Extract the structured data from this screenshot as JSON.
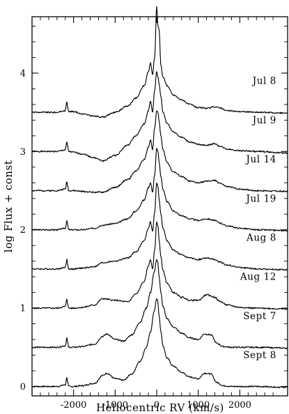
{
  "chart_data": {
    "type": "line",
    "xlabel": "Heliocentric RV  (km/s)",
    "ylabel": "log Flux + const",
    "xlim": [
      -3000,
      3150
    ],
    "ylim": [
      -0.12,
      4.72
    ],
    "xticks": [
      -2000,
      -1000,
      0,
      1000,
      2000
    ],
    "yticks": [
      0,
      1,
      2,
      3,
      4
    ],
    "x_tick_labels": [
      "-2000",
      "-1000",
      "0",
      "1000",
      "2000"
    ],
    "y_tick_labels": [
      "0",
      "1",
      "2",
      "3",
      "4"
    ],
    "grid": false,
    "legend": "none (series labelled at right of each trace)",
    "series": [
      {
        "name": "Jul 8",
        "offset": 3.5,
        "x": [
          -3000,
          -2400,
          -2200,
          -2160,
          -2140,
          -2120,
          -2000,
          -1800,
          -1500,
          -1300,
          -1000,
          -700,
          -500,
          -300,
          -200,
          -150,
          -100,
          -50,
          0,
          30,
          60,
          100,
          150,
          250,
          400,
          600,
          800,
          1000,
          1200,
          1400,
          1500,
          1700,
          2000,
          2400,
          3150
        ],
        "y": [
          3.5,
          3.5,
          3.52,
          3.64,
          3.56,
          3.51,
          3.51,
          3.48,
          3.45,
          3.44,
          3.5,
          3.58,
          3.68,
          3.84,
          4.02,
          4.13,
          3.98,
          4.2,
          4.85,
          4.6,
          4.55,
          4.1,
          3.95,
          3.84,
          3.72,
          3.66,
          3.6,
          3.56,
          3.55,
          3.57,
          3.56,
          3.52,
          3.51,
          3.5,
          3.49
        ]
      },
      {
        "name": "Jul 9",
        "offset": 3.0,
        "x": [
          -3000,
          -2400,
          -2200,
          -2160,
          -2140,
          -2120,
          -2000,
          -1800,
          -1500,
          -1300,
          -1000,
          -700,
          -500,
          -300,
          -200,
          -150,
          -100,
          -50,
          0,
          30,
          60,
          100,
          150,
          250,
          400,
          600,
          800,
          1000,
          1200,
          1400,
          1500,
          1700,
          2000,
          2400,
          3150
        ],
        "y": [
          3.0,
          3.0,
          3.02,
          3.12,
          3.05,
          3.0,
          2.99,
          2.97,
          2.92,
          2.88,
          2.95,
          3.08,
          3.2,
          3.35,
          3.52,
          3.64,
          3.5,
          3.78,
          4.02,
          3.95,
          3.86,
          3.7,
          3.5,
          3.36,
          3.25,
          3.18,
          3.12,
          3.09,
          3.08,
          3.1,
          3.07,
          3.03,
          3.01,
          3.0,
          2.98
        ]
      },
      {
        "name": "Jul 14",
        "offset": 2.5,
        "x": [
          -3000,
          -2400,
          -2200,
          -2160,
          -2140,
          -2120,
          -2000,
          -1800,
          -1500,
          -1300,
          -1000,
          -700,
          -500,
          -300,
          -200,
          -150,
          -100,
          -50,
          0,
          30,
          60,
          100,
          150,
          250,
          400,
          600,
          800,
          1000,
          1200,
          1400,
          1500,
          1700,
          2000,
          2400,
          3150
        ],
        "y": [
          2.5,
          2.5,
          2.52,
          2.62,
          2.55,
          2.5,
          2.5,
          2.49,
          2.48,
          2.48,
          2.54,
          2.64,
          2.75,
          2.9,
          3.05,
          3.15,
          3.02,
          3.3,
          3.52,
          3.5,
          3.38,
          3.2,
          3.02,
          2.86,
          2.74,
          2.68,
          2.62,
          2.6,
          2.62,
          2.63,
          2.6,
          2.55,
          2.52,
          2.5,
          2.49
        ]
      },
      {
        "name": "Jul 19",
        "offset": 2.0,
        "x": [
          -3000,
          -2400,
          -2200,
          -2160,
          -2140,
          -2120,
          -2000,
          -1800,
          -1500,
          -1300,
          -1000,
          -700,
          -500,
          -300,
          -200,
          -150,
          -100,
          -50,
          0,
          30,
          60,
          100,
          150,
          250,
          400,
          600,
          800,
          1000,
          1200,
          1400,
          1500,
          1700,
          2000,
          2400,
          3150
        ],
        "y": [
          2.0,
          2.0,
          2.02,
          2.12,
          2.05,
          2.0,
          2.0,
          2.0,
          2.02,
          2.06,
          2.08,
          2.14,
          2.24,
          2.38,
          2.54,
          2.6,
          2.48,
          2.7,
          3.04,
          3.0,
          2.86,
          2.68,
          2.52,
          2.36,
          2.24,
          2.18,
          2.14,
          2.12,
          2.14,
          2.12,
          2.09,
          2.05,
          2.02,
          2.0,
          1.99
        ]
      },
      {
        "name": "Aug 8",
        "offset": 1.5,
        "x": [
          -3000,
          -2400,
          -2200,
          -2160,
          -2140,
          -2120,
          -2000,
          -1800,
          -1500,
          -1300,
          -1000,
          -700,
          -500,
          -300,
          -200,
          -150,
          -100,
          -50,
          0,
          30,
          60,
          100,
          150,
          250,
          400,
          600,
          800,
          1000,
          1200,
          1400,
          1500,
          1700,
          2000,
          2400,
          3150
        ],
        "y": [
          1.5,
          1.5,
          1.52,
          1.62,
          1.55,
          1.5,
          1.5,
          1.51,
          1.53,
          1.58,
          1.6,
          1.64,
          1.72,
          1.86,
          2.02,
          2.1,
          1.98,
          2.22,
          2.6,
          2.55,
          2.38,
          2.2,
          2.02,
          1.86,
          1.74,
          1.68,
          1.64,
          1.62,
          1.64,
          1.62,
          1.59,
          1.55,
          1.52,
          1.5,
          1.49
        ]
      },
      {
        "name": "Aug 12",
        "offset": 1.0,
        "x": [
          -3000,
          -2400,
          -2200,
          -2160,
          -2140,
          -2120,
          -2000,
          -1800,
          -1500,
          -1300,
          -1000,
          -700,
          -500,
          -300,
          -200,
          -150,
          -100,
          -50,
          0,
          30,
          60,
          100,
          150,
          250,
          400,
          600,
          800,
          1000,
          1200,
          1400,
          1500,
          1700,
          2000,
          2400,
          3150
        ],
        "y": [
          1.0,
          1.0,
          1.02,
          1.12,
          1.05,
          1.0,
          1.0,
          1.01,
          1.04,
          1.12,
          1.1,
          1.08,
          1.18,
          1.34,
          1.54,
          1.62,
          1.5,
          1.74,
          2.1,
          2.05,
          1.86,
          1.66,
          1.48,
          1.32,
          1.2,
          1.14,
          1.1,
          1.1,
          1.17,
          1.14,
          1.09,
          1.04,
          1.01,
          1.0,
          0.99
        ]
      },
      {
        "name": "Sept 7",
        "offset": 0.5,
        "x": [
          -3000,
          -2400,
          -2200,
          -2160,
          -2140,
          -2120,
          -2000,
          -1800,
          -1500,
          -1300,
          -1200,
          -1000,
          -800,
          -600,
          -400,
          -250,
          -150,
          -60,
          0,
          20,
          60,
          100,
          150,
          250,
          400,
          600,
          800,
          1000,
          1150,
          1300,
          1450,
          1600,
          1800,
          2100,
          2400,
          3150
        ],
        "y": [
          0.5,
          0.5,
          0.52,
          0.62,
          0.55,
          0.5,
          0.5,
          0.51,
          0.54,
          0.64,
          0.67,
          0.6,
          0.58,
          0.66,
          0.82,
          1.0,
          1.2,
          1.46,
          1.62,
          1.6,
          1.4,
          1.2,
          1.02,
          0.86,
          0.76,
          0.68,
          0.62,
          0.6,
          0.67,
          0.66,
          0.55,
          0.51,
          0.5,
          0.5,
          0.5,
          0.49
        ]
      },
      {
        "name": "Sept 8",
        "offset": 0.0,
        "x": [
          -3000,
          -2400,
          -2200,
          -2160,
          -2140,
          -2120,
          -2000,
          -1800,
          -1500,
          -1300,
          -1200,
          -1000,
          -800,
          -600,
          -400,
          -250,
          -150,
          -60,
          0,
          20,
          60,
          100,
          150,
          250,
          400,
          600,
          800,
          1000,
          1150,
          1300,
          1450,
          1600,
          1800,
          2100,
          2400,
          3150
        ],
        "y": [
          0.0,
          0.0,
          0.02,
          0.12,
          0.05,
          0.0,
          0.0,
          0.01,
          0.04,
          0.14,
          0.17,
          0.1,
          0.08,
          0.16,
          0.32,
          0.5,
          0.7,
          0.96,
          1.12,
          1.1,
          0.9,
          0.7,
          0.52,
          0.36,
          0.26,
          0.18,
          0.12,
          0.1,
          0.17,
          0.16,
          0.05,
          0.01,
          0.0,
          0.0,
          0.0,
          -0.01
        ]
      }
    ]
  }
}
